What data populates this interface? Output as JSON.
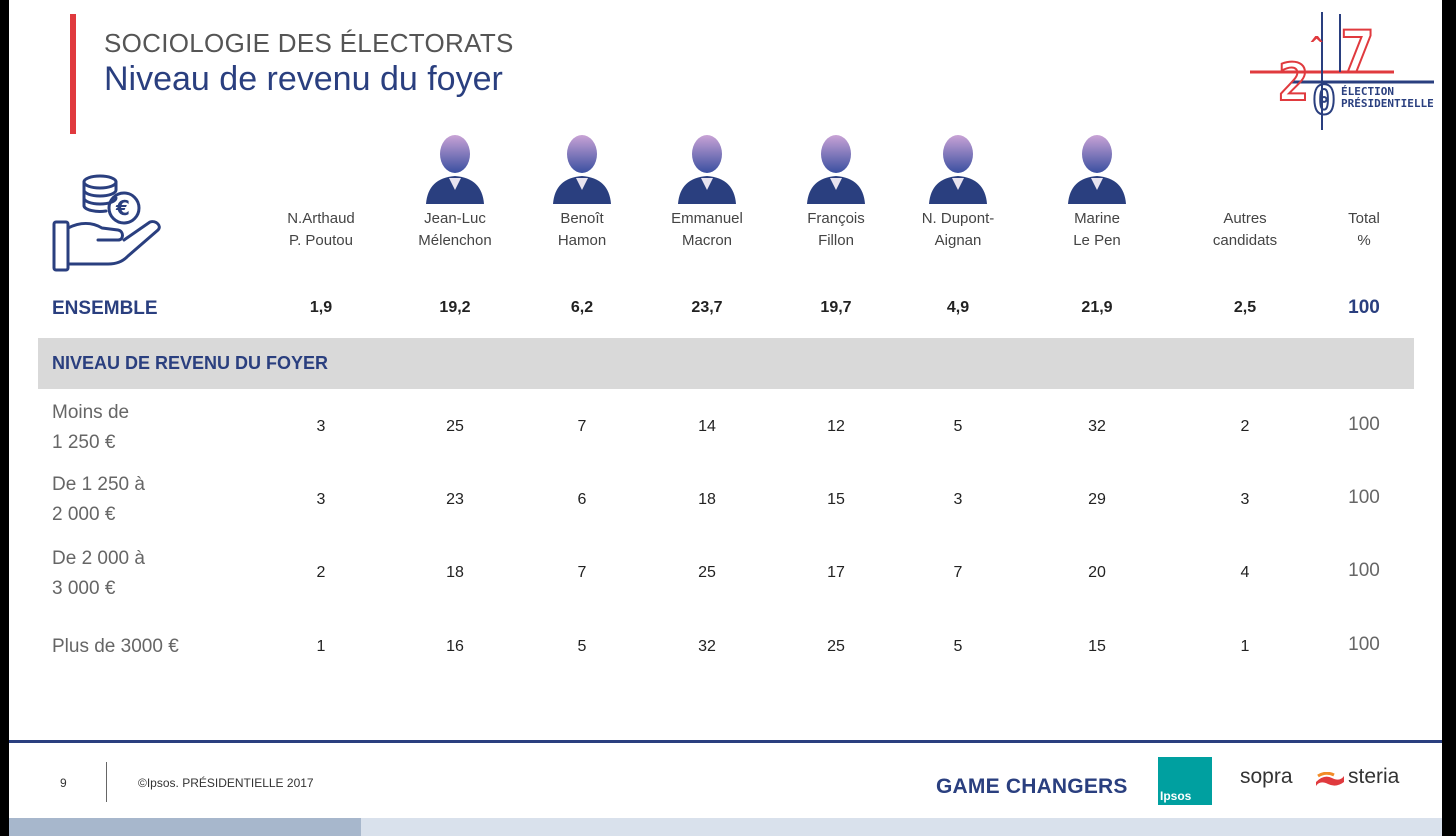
{
  "header": {
    "kicker": "SOCIOLOGIE DES ÉLECTORATS",
    "title": "Niveau de revenu du foyer",
    "logo_year": "2017",
    "logo_text_line1": "ÉLECTION",
    "logo_text_line2": "PRÉSIDENTIELLE"
  },
  "columns": [
    {
      "line1": "N.Arthaud",
      "line2": "P. Poutou",
      "has_portrait": false
    },
    {
      "line1": "Jean-Luc",
      "line2": "Mélenchon",
      "has_portrait": true
    },
    {
      "line1": "Benoît",
      "line2": "Hamon",
      "has_portrait": true
    },
    {
      "line1": "Emmanuel",
      "line2": "Macron",
      "has_portrait": true
    },
    {
      "line1": "François",
      "line2": "Fillon",
      "has_portrait": true
    },
    {
      "line1": "N. Dupont-",
      "line2": "Aignan",
      "has_portrait": true
    },
    {
      "line1": "Marine",
      "line2": "Le Pen",
      "has_portrait": true
    },
    {
      "line1": "Autres",
      "line2": "candidats",
      "has_portrait": false
    },
    {
      "line1": "Total",
      "line2": "%",
      "has_portrait": false
    }
  ],
  "ensemble": {
    "label": "ENSEMBLE",
    "values": [
      "1,9",
      "19,2",
      "6,2",
      "23,7",
      "19,7",
      "4,9",
      "21,9",
      "2,5"
    ],
    "total": "100"
  },
  "section": {
    "label": "NIVEAU DE REVENU DU FOYER"
  },
  "rows": [
    {
      "label_line1": "Moins de",
      "label_line2": "1 250 €",
      "values": [
        "3",
        "25",
        "7",
        "14",
        "12",
        "5",
        "32",
        "2"
      ],
      "total": "100"
    },
    {
      "label_line1": "De 1 250 à",
      "label_line2": "2 000 €",
      "values": [
        "3",
        "23",
        "6",
        "18",
        "15",
        "3",
        "29",
        "3"
      ],
      "total": "100"
    },
    {
      "label_line1": "De 2 000 à",
      "label_line2": "3 000 €",
      "values": [
        "2",
        "18",
        "7",
        "25",
        "17",
        "7",
        "20",
        "4"
      ],
      "total": "100"
    },
    {
      "label_line1": "Plus de 3000 €",
      "label_line2": "",
      "values": [
        "1",
        "16",
        "5",
        "32",
        "25",
        "5",
        "15",
        "1"
      ],
      "total": "100"
    }
  ],
  "footer": {
    "page_number": "9",
    "copyright": "©Ipsos.  PRÉSIDENTIELLE 2017",
    "tagline": "GAME CHANGERS",
    "ipsos": "Ipsos",
    "sopra": "sopra",
    "steria": "steria"
  },
  "colors": {
    "navy": "#2a3f7f",
    "red": "#e03a3e",
    "band_grey": "#d9d9d9",
    "ipsos_teal": "#00a0a0"
  },
  "icons": [
    "coins-hand-icon",
    "candidate-portrait",
    "election-2017-logo",
    "ipsos-logo",
    "sopra-steria-logo"
  ]
}
